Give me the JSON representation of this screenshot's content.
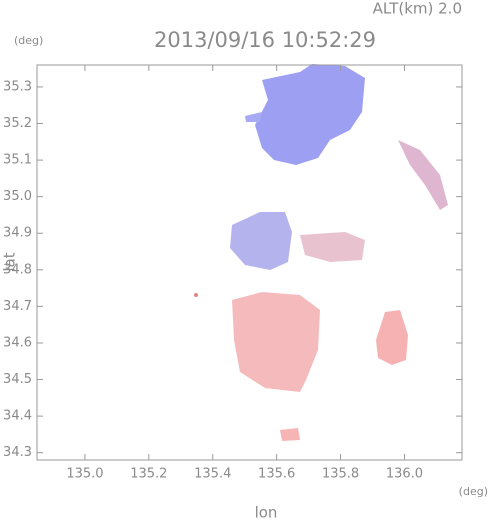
{
  "chart_data": {
    "type": "map",
    "altitude_label": "ALT(km) 2.0",
    "title": "2013/09/16 10:52:29",
    "y_unit": "(deg)",
    "x_unit": "(deg)",
    "xlabel": "lon",
    "ylabel": "lat",
    "xlim": [
      134.85,
      136.18
    ],
    "ylim": [
      34.28,
      35.36
    ],
    "xticks": [
      {
        "value": 135.0,
        "label": "135.0"
      },
      135.2,
      135.4,
      135.6,
      135.8,
      {
        "value": 136.0,
        "label": "136.0"
      }
    ],
    "yticks": [
      34.3,
      34.4,
      34.5,
      34.6,
      34.7,
      34.8,
      34.9,
      {
        "value": 35.0,
        "label": "35.0"
      },
      35.1,
      35.2,
      35.3
    ]
  }
}
